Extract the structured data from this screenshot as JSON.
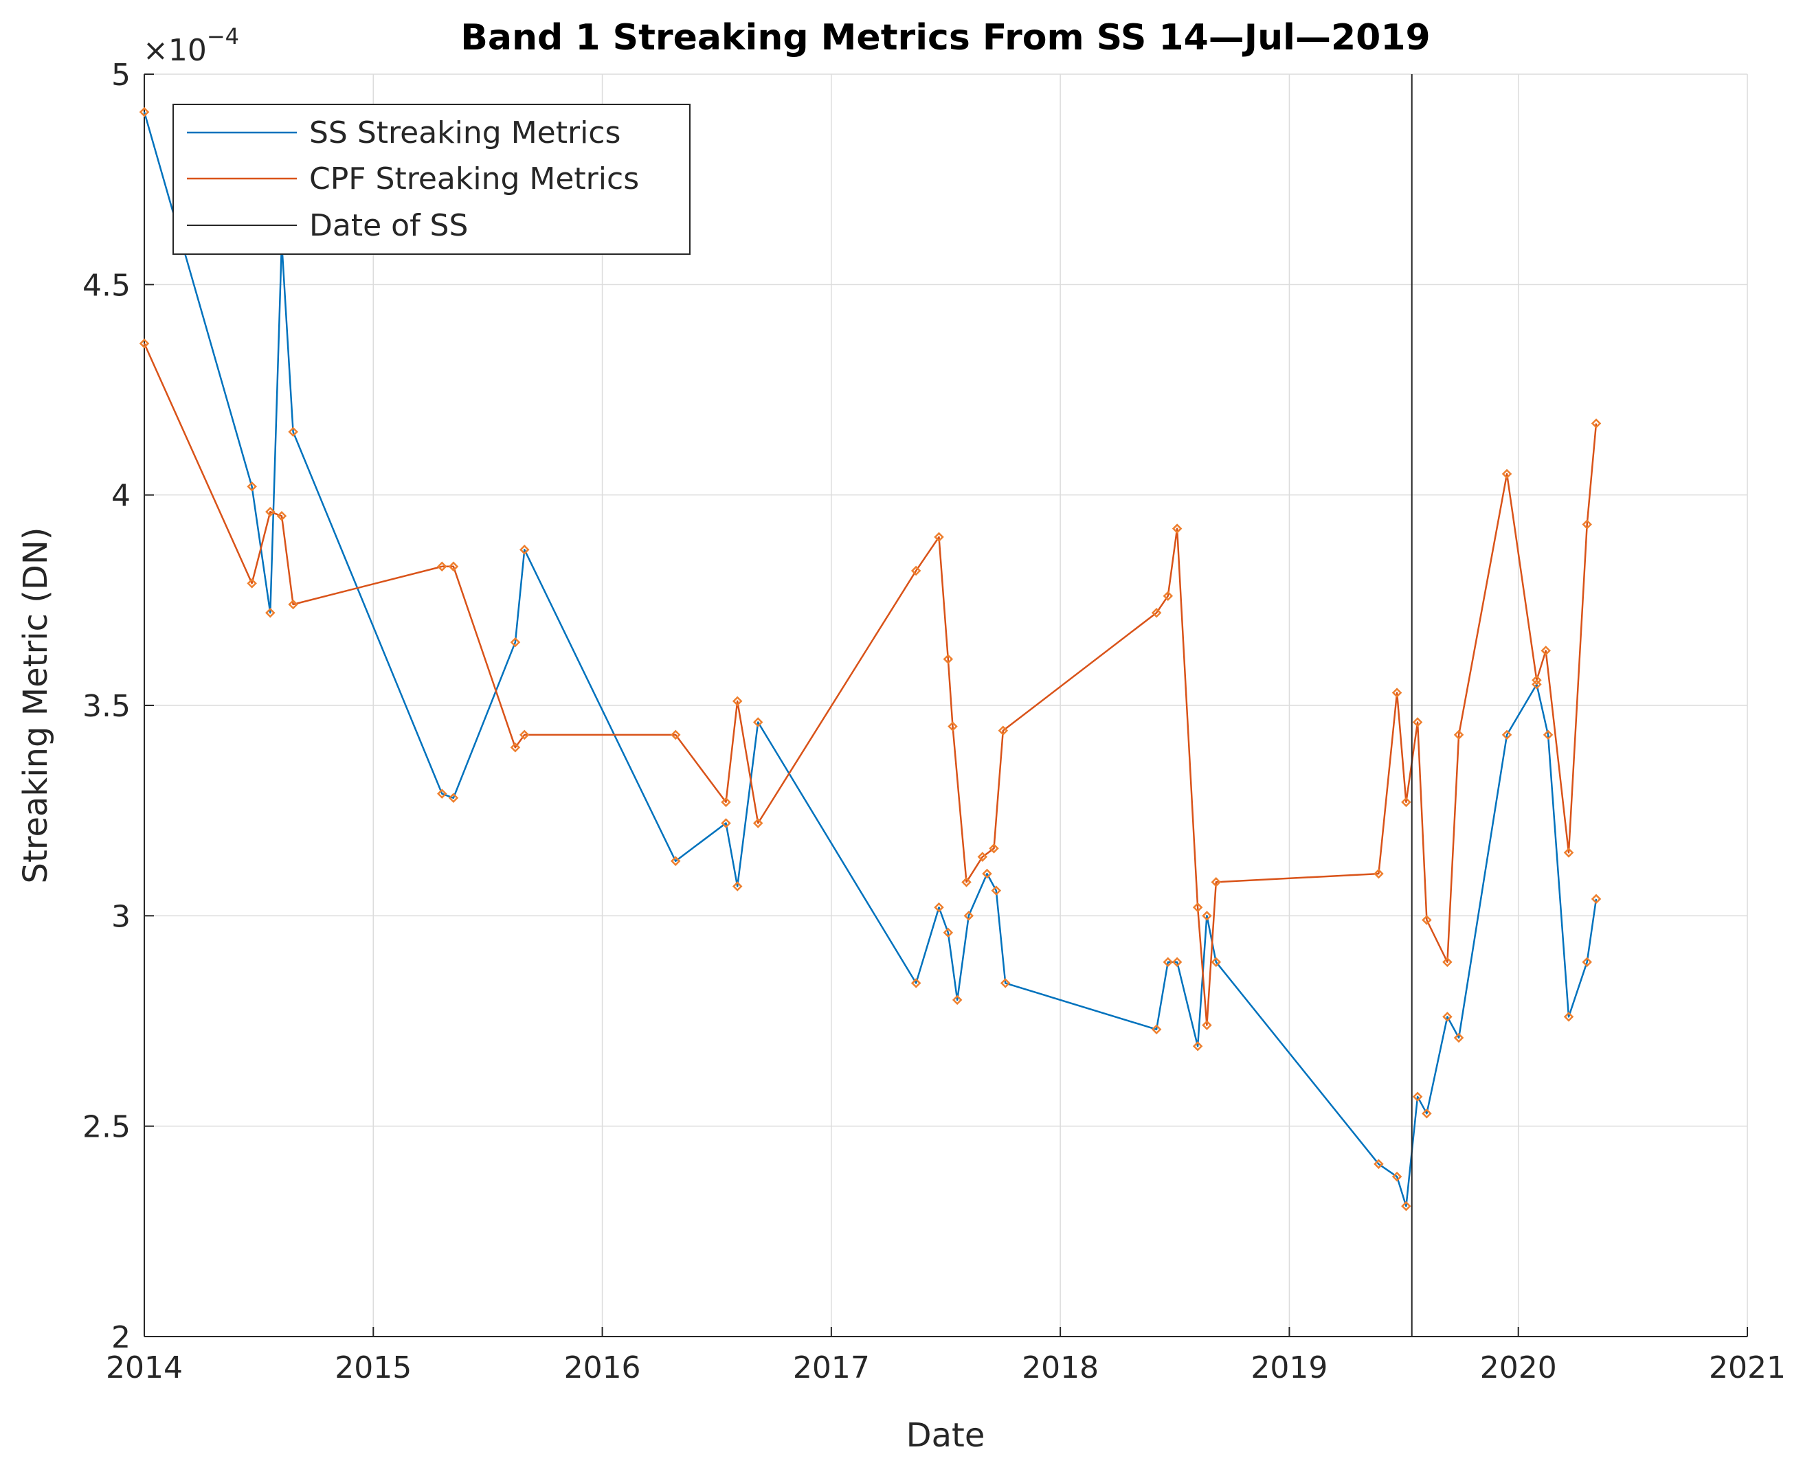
{
  "chart_data": {
    "type": "line",
    "title": "Band 1 Streaking Metrics From SS 14—Jul—2019",
    "xlabel": "Date",
    "ylabel": "Streaking Metric (DN)",
    "y_exponent_label": "×10",
    "y_exponent": "−4",
    "xlim": [
      2014,
      2021
    ],
    "ylim": [
      2,
      5
    ],
    "x_ticks": [
      2014,
      2015,
      2016,
      2017,
      2018,
      2019,
      2020,
      2021
    ],
    "x_tick_labels": [
      "2014",
      "2015",
      "2016",
      "2017",
      "2018",
      "2019",
      "2020",
      "2021"
    ],
    "y_ticks": [
      2,
      2.5,
      3,
      3.5,
      4,
      4.5,
      5
    ],
    "y_tick_labels": [
      "2",
      "2.5",
      "3",
      "3.5",
      "4",
      "4.5",
      "5"
    ],
    "grid": true,
    "legend_position": "top-left",
    "colors": {
      "ss": "#0072BD",
      "cpf": "#D95319",
      "marker": "#EE7F2D",
      "date_of_ss": "#262626",
      "grid": "#DCDCDC",
      "axis": "#262626"
    },
    "series": [
      {
        "name": "SS Streaking Metrics",
        "x": [
          2014.0,
          2014.47,
          2014.55,
          2014.6,
          2014.65,
          2015.3,
          2015.35,
          2015.62,
          2015.66,
          2016.32,
          2016.54,
          2016.59,
          2016.68,
          2017.37,
          2017.47,
          2017.51,
          2017.55,
          2017.6,
          2017.68,
          2017.72,
          2017.76,
          2018.42,
          2018.47,
          2018.51,
          2018.6,
          2018.64,
          2018.68,
          2019.39,
          2019.47,
          2019.51,
          2019.56,
          2019.6,
          2019.69,
          2019.74,
          2019.95,
          2020.08,
          2020.13,
          2020.22,
          2020.3,
          2020.34
        ],
        "values": [
          4.91,
          4.02,
          3.72,
          4.6,
          4.15,
          3.29,
          3.28,
          3.65,
          3.87,
          3.13,
          3.22,
          3.07,
          3.46,
          2.84,
          3.02,
          2.96,
          2.8,
          3.0,
          3.1,
          3.06,
          2.84,
          2.73,
          2.89,
          2.89,
          2.69,
          3.0,
          2.89,
          2.41,
          2.38,
          2.31,
          2.57,
          2.53,
          2.76,
          2.71,
          3.43,
          3.55,
          3.43,
          2.76,
          2.89,
          3.04
        ]
      },
      {
        "name": "CPF Streaking Metrics",
        "x": [
          2014.0,
          2014.47,
          2014.55,
          2014.6,
          2014.65,
          2015.3,
          2015.35,
          2015.62,
          2015.66,
          2016.32,
          2016.54,
          2016.59,
          2016.68,
          2017.37,
          2017.47,
          2017.51,
          2017.53,
          2017.59,
          2017.66,
          2017.71,
          2017.75,
          2018.42,
          2018.47,
          2018.51,
          2018.6,
          2018.64,
          2018.68,
          2019.39,
          2019.47,
          2019.51,
          2019.56,
          2019.6,
          2019.69,
          2019.74,
          2019.95,
          2020.08,
          2020.12,
          2020.22,
          2020.3,
          2020.34
        ],
        "values": [
          4.36,
          3.79,
          3.96,
          3.95,
          3.74,
          3.83,
          3.83,
          3.4,
          3.43,
          3.43,
          3.27,
          3.51,
          3.22,
          3.82,
          3.9,
          3.61,
          3.45,
          3.08,
          3.14,
          3.16,
          3.44,
          3.72,
          3.76,
          3.92,
          3.02,
          2.74,
          3.08,
          3.1,
          3.53,
          3.27,
          3.46,
          2.99,
          2.89,
          3.43,
          4.05,
          3.56,
          3.63,
          3.15,
          3.93,
          4.17
        ]
      }
    ],
    "reference_line": {
      "name": "Date of SS",
      "x": 2019.535
    },
    "legend": [
      "SS Streaking Metrics",
      "CPF Streaking Metrics",
      "Date of SS"
    ]
  }
}
